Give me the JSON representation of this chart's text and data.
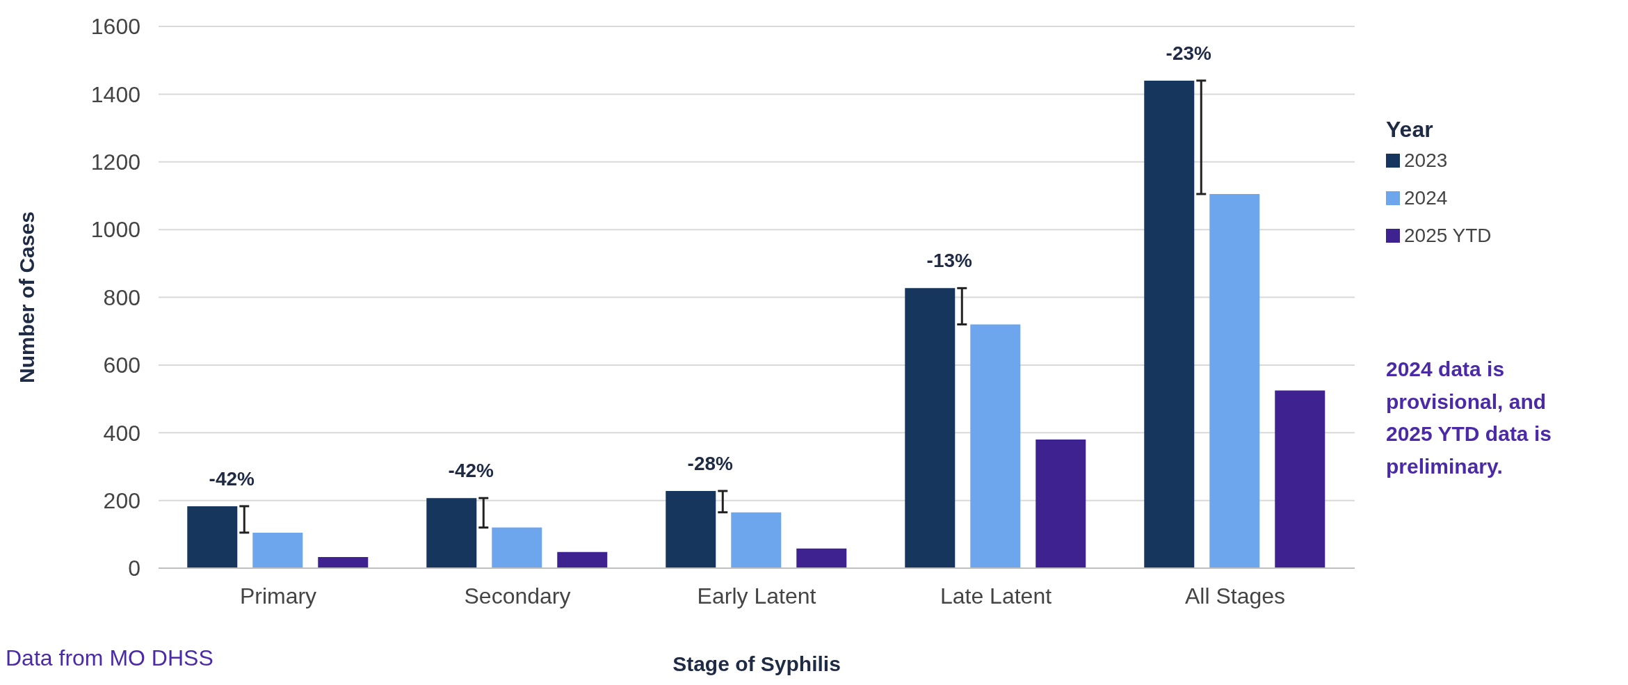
{
  "chart_data": {
    "type": "bar",
    "xlabel": "Stage of Syphilis",
    "ylabel": "Number of Cases",
    "legend_title": "Year",
    "categories": [
      "Primary",
      "Secondary",
      "Early Latent",
      "Late Latent",
      "All Stages"
    ],
    "series": [
      {
        "name": "2023",
        "color": "#17365d",
        "values": [
          183,
          207,
          228,
          827,
          1440
        ]
      },
      {
        "name": "2024",
        "color": "#6ea6ee",
        "values": [
          105,
          120,
          165,
          720,
          1105
        ]
      },
      {
        "name": "2025 YTD",
        "color": "#3d2290",
        "values": [
          33,
          48,
          58,
          380,
          525
        ]
      }
    ],
    "ylim": [
      0,
      1600
    ],
    "yticks": [
      0,
      200,
      400,
      600,
      800,
      1000,
      1200,
      1400,
      1600
    ],
    "grid": "y",
    "legend": "right",
    "annotations": [
      "-42%",
      "-42%",
      "-28%",
      "-13%",
      "-23%",
      "2024 data is provisional, and 2025 YTD data is preliminary.",
      "Data from MO DHSS"
    ]
  }
}
